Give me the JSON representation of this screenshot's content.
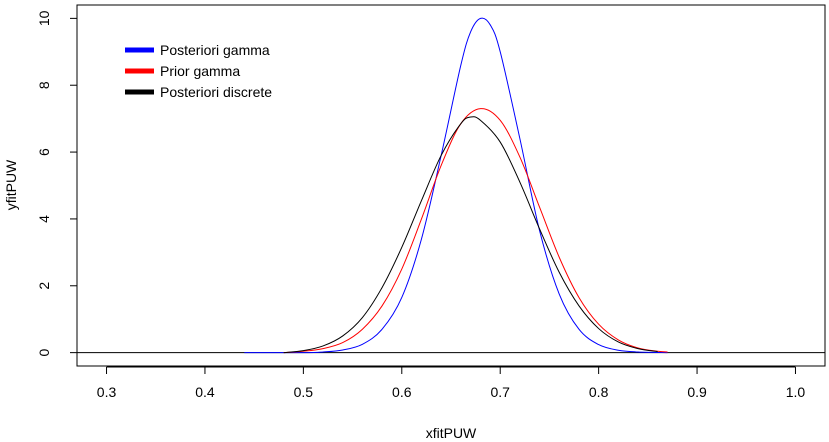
{
  "chart_data": {
    "type": "line",
    "title": "",
    "xlabel": "xfitPUW",
    "ylabel": "yfitPUW",
    "xlim": [
      0.27,
      1.03
    ],
    "ylim": [
      -0.4,
      10.4
    ],
    "x_ticks": [
      0.3,
      0.4,
      0.5,
      0.6,
      0.7,
      0.8,
      0.9,
      1.0
    ],
    "x_tick_labels": [
      "0.3",
      "0.4",
      "0.5",
      "0.6",
      "0.7",
      "0.8",
      "0.9",
      "1.0"
    ],
    "y_ticks": [
      0,
      2,
      4,
      6,
      8,
      10
    ],
    "y_tick_labels": [
      "0",
      "2",
      "4",
      "6",
      "8",
      "10"
    ],
    "grid": false,
    "legend_position": "top-left",
    "zero_line": {
      "y": 0,
      "color": "#000000"
    },
    "series": [
      {
        "name": "Posteriori gamma",
        "color": "#0000ff",
        "x": [
          0.44,
          0.5,
          0.52,
          0.54,
          0.56,
          0.58,
          0.6,
          0.62,
          0.64,
          0.66,
          0.67,
          0.68,
          0.69,
          0.7,
          0.72,
          0.74,
          0.76,
          0.78,
          0.8,
          0.82,
          0.84,
          0.87
        ],
        "y": [
          0.0,
          0.0,
          0.02,
          0.08,
          0.25,
          0.7,
          1.65,
          3.4,
          5.9,
          8.6,
          9.6,
          10.0,
          9.8,
          9.0,
          6.4,
          3.65,
          1.75,
          0.7,
          0.24,
          0.07,
          0.02,
          0.0
        ]
      },
      {
        "name": "Prior gamma",
        "color": "#ff0000",
        "x": [
          0.48,
          0.5,
          0.52,
          0.54,
          0.56,
          0.58,
          0.6,
          0.62,
          0.64,
          0.66,
          0.68,
          0.7,
          0.72,
          0.74,
          0.76,
          0.78,
          0.8,
          0.82,
          0.84,
          0.86,
          0.87
        ],
        "y": [
          0.0,
          0.04,
          0.12,
          0.3,
          0.7,
          1.4,
          2.5,
          4.0,
          5.6,
          6.85,
          7.3,
          6.95,
          5.85,
          4.35,
          2.85,
          1.65,
          0.85,
          0.38,
          0.14,
          0.04,
          0.02
        ]
      },
      {
        "name": "Posteriori discrete",
        "color": "#000000",
        "x": [
          0.48,
          0.5,
          0.52,
          0.54,
          0.56,
          0.58,
          0.6,
          0.62,
          0.64,
          0.66,
          0.67,
          0.68,
          0.7,
          0.72,
          0.74,
          0.76,
          0.78,
          0.8,
          0.82,
          0.84,
          0.86
        ],
        "y": [
          0.0,
          0.06,
          0.2,
          0.5,
          1.05,
          1.95,
          3.15,
          4.55,
          5.9,
          6.85,
          7.05,
          6.95,
          6.3,
          5.1,
          3.7,
          2.4,
          1.4,
          0.72,
          0.32,
          0.12,
          0.03
        ]
      }
    ]
  }
}
